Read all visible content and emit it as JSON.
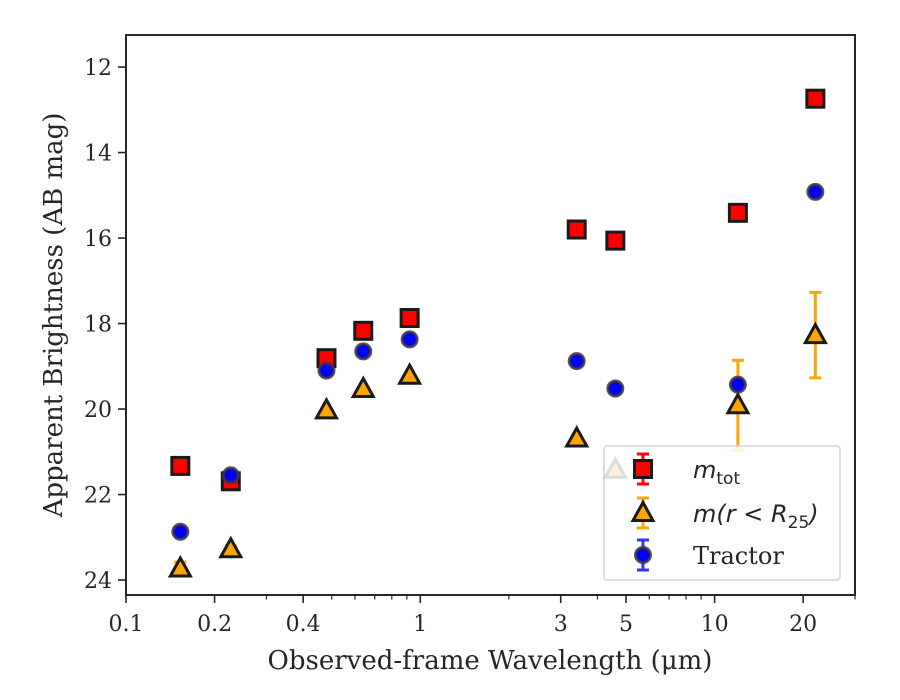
{
  "chart_data": {
    "type": "scatter",
    "xlabel": "Observed-frame Wavelength (μm)",
    "ylabel": "Apparent Brightness (AB mag)",
    "x_scale": "log",
    "xlim": [
      0.1,
      30
    ],
    "ylim": [
      24.35,
      11.25
    ],
    "y_inverted": true,
    "x_ticks": [
      {
        "value": 0.1,
        "label": "0.1"
      },
      {
        "value": 0.2,
        "label": "0.2"
      },
      {
        "value": 0.4,
        "label": "0.4"
      },
      {
        "value": 1,
        "label": "1"
      },
      {
        "value": 3,
        "label": "3"
      },
      {
        "value": 5,
        "label": "5"
      },
      {
        "value": 10,
        "label": "10"
      },
      {
        "value": 20,
        "label": "20"
      }
    ],
    "y_ticks": [
      12,
      14,
      16,
      18,
      20,
      22,
      24
    ],
    "legend_position": "lower-right",
    "series": [
      {
        "name": "m_tot",
        "legend_label": {
          "main": "m",
          "sub": "tot"
        },
        "marker": "square",
        "fill": "#ff0000",
        "edge": "#1a1a1a",
        "error_color": "#ff0000",
        "points": [
          {
            "x": 0.153,
            "y": 21.33,
            "err": 0.05
          },
          {
            "x": 0.227,
            "y": 21.69,
            "err": 0.08
          },
          {
            "x": 0.48,
            "y": 18.81,
            "err": 0.03
          },
          {
            "x": 0.64,
            "y": 18.17,
            "err": 0.03
          },
          {
            "x": 0.92,
            "y": 17.87,
            "err": 0.03
          },
          {
            "x": 3.4,
            "y": 15.8,
            "err": 0.02
          },
          {
            "x": 4.6,
            "y": 16.06,
            "err": 0.02
          },
          {
            "x": 12.0,
            "y": 15.41,
            "err": 0.03
          },
          {
            "x": 22.0,
            "y": 12.74,
            "err": 0.03
          }
        ]
      },
      {
        "name": "m(r < R_25)",
        "legend_label": {
          "main": "m(r < R",
          "sub": "25",
          "tail": ")"
        },
        "marker": "triangle",
        "fill": "#ffa500",
        "edge": "#1a1a1a",
        "error_color": "#ffa500",
        "points": [
          {
            "x": 0.153,
            "y": 23.73,
            "err": 0.15
          },
          {
            "x": 0.227,
            "y": 23.28,
            "err": 0.08
          },
          {
            "x": 0.48,
            "y": 20.03,
            "err": 0.04
          },
          {
            "x": 0.64,
            "y": 19.53,
            "err": 0.04
          },
          {
            "x": 0.92,
            "y": 19.22,
            "err": 0.04
          },
          {
            "x": 3.4,
            "y": 20.69,
            "err": 0.05
          },
          {
            "x": 4.6,
            "y": 21.42,
            "err": 0.06
          },
          {
            "x": 12.0,
            "y": 19.91,
            "err": 1.05
          },
          {
            "x": 22.0,
            "y": 18.27,
            "err": 1.0
          }
        ]
      },
      {
        "name": "Tractor",
        "legend_label": {
          "main": "Tractor"
        },
        "marker": "circle",
        "fill": "#0000ff",
        "edge": "#3a3a3a",
        "error_color": "#3333ff",
        "points": [
          {
            "x": 0.153,
            "y": 22.87,
            "err": 0.03
          },
          {
            "x": 0.227,
            "y": 21.55,
            "err": 0.05
          },
          {
            "x": 0.48,
            "y": 19.1,
            "err": 0.05
          },
          {
            "x": 0.64,
            "y": 18.65,
            "err": 0.04
          },
          {
            "x": 0.92,
            "y": 18.37,
            "err": 0.04
          },
          {
            "x": 3.4,
            "y": 18.88,
            "err": 0.04
          },
          {
            "x": 4.6,
            "y": 19.52,
            "err": 0.04
          },
          {
            "x": 12.0,
            "y": 19.43,
            "err": 0.05
          },
          {
            "x": 22.0,
            "y": 14.92,
            "err": 0.04
          }
        ]
      }
    ]
  }
}
